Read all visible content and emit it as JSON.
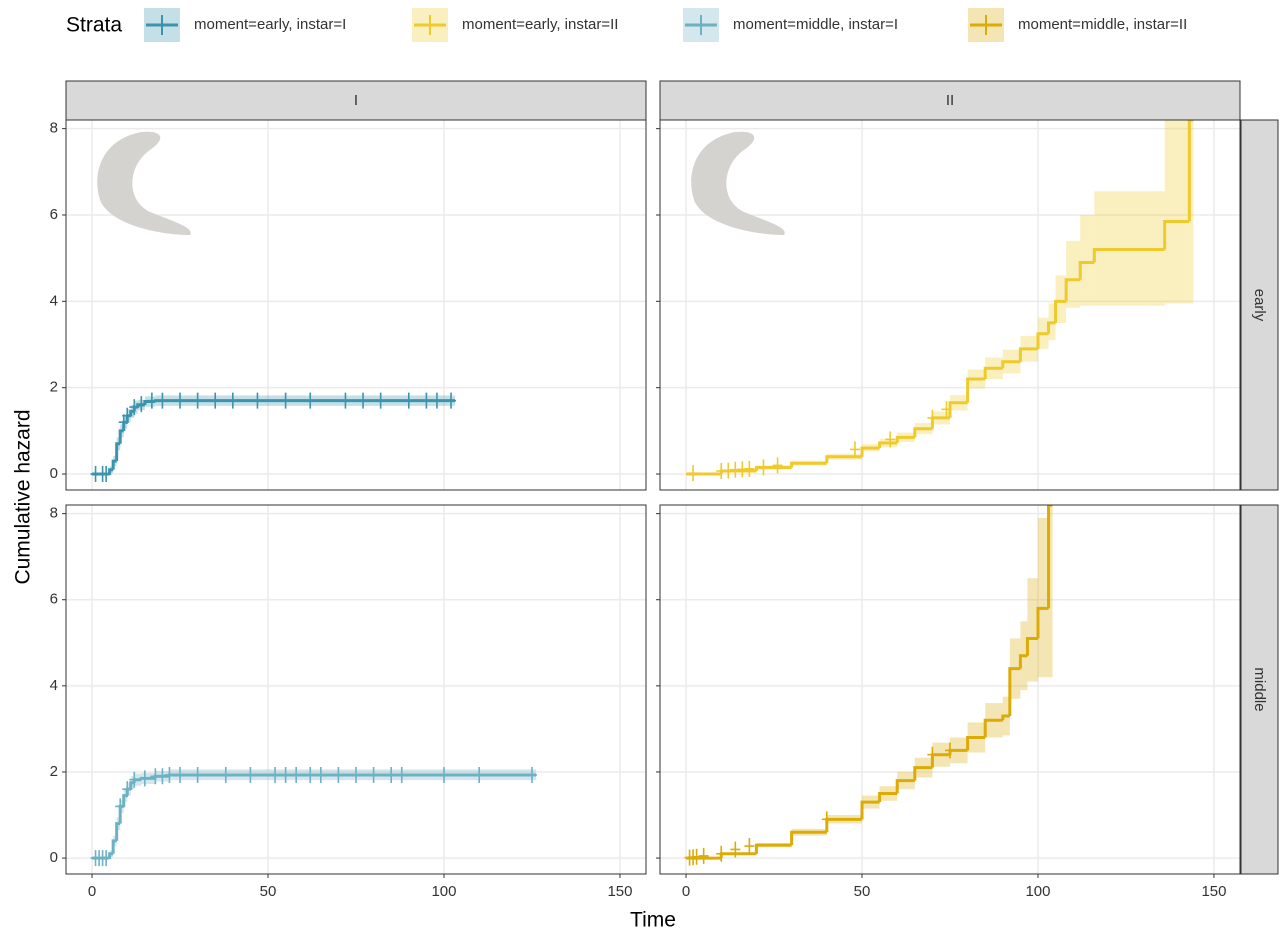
{
  "chart_data": {
    "type": "step",
    "legend_title": "Strata",
    "xlabel": "Time",
    "ylabel": "Cumulative hazard",
    "col_labels": [
      "I",
      "II"
    ],
    "row_labels": [
      "early",
      "middle"
    ],
    "xlim": [
      -7.4,
      157.4
    ],
    "xticks": [
      0,
      50,
      100,
      150
    ],
    "ylim": [
      -0.37,
      8.2
    ],
    "yticks": [
      0,
      2,
      4,
      6,
      8
    ],
    "grid": true,
    "series": [
      {
        "name": "moment=early, instar=I",
        "color": "#3a94ad",
        "x": [
          0,
          4,
          5,
          6,
          7,
          8,
          9,
          10,
          11,
          12,
          13,
          15,
          18,
          102
        ],
        "values": [
          0,
          0,
          0.1,
          0.3,
          0.7,
          1.0,
          1.2,
          1.35,
          1.45,
          1.55,
          1.6,
          1.68,
          1.7,
          1.7
        ],
        "lower": [
          0,
          0,
          0.02,
          0.18,
          0.55,
          0.85,
          1.05,
          1.2,
          1.3,
          1.4,
          1.48,
          1.56,
          1.58,
          1.58
        ],
        "upper": [
          0,
          0,
          0.18,
          0.42,
          0.85,
          1.15,
          1.35,
          1.5,
          1.6,
          1.7,
          1.72,
          1.8,
          1.82,
          1.82
        ],
        "censor_x": [
          1,
          3,
          4,
          9,
          10,
          12,
          14,
          17,
          20,
          25,
          30,
          35,
          40,
          47,
          55,
          62,
          72,
          77,
          82,
          90,
          95,
          98,
          102
        ],
        "censor_values": [
          0,
          0,
          0,
          1.2,
          1.35,
          1.55,
          1.62,
          1.7,
          1.7,
          1.7,
          1.7,
          1.7,
          1.7,
          1.7,
          1.7,
          1.7,
          1.7,
          1.7,
          1.7,
          1.7,
          1.7,
          1.7,
          1.7
        ]
      },
      {
        "name": "moment=early, instar=II",
        "color": "#efca2c",
        "x": [
          0,
          10,
          20,
          30,
          40,
          50,
          55,
          60,
          65,
          70,
          75,
          80,
          85,
          90,
          95,
          100,
          103,
          105,
          108,
          112,
          116,
          136,
          143
        ],
        "values": [
          0,
          0.07,
          0.15,
          0.25,
          0.4,
          0.6,
          0.72,
          0.85,
          1.05,
          1.3,
          1.65,
          2.2,
          2.45,
          2.6,
          2.9,
          3.25,
          3.5,
          4.0,
          4.5,
          4.9,
          5.2,
          5.85,
          8.2
        ],
        "lower": [
          0,
          0.04,
          0.1,
          0.2,
          0.33,
          0.52,
          0.62,
          0.74,
          0.92,
          1.15,
          1.47,
          1.98,
          2.2,
          2.33,
          2.6,
          2.9,
          3.1,
          3.5,
          3.85,
          3.9,
          3.9,
          3.95,
          3.95
        ],
        "upper": [
          0,
          0.1,
          0.2,
          0.31,
          0.47,
          0.69,
          0.82,
          0.96,
          1.18,
          1.45,
          1.83,
          2.42,
          2.7,
          2.88,
          3.2,
          3.62,
          3.95,
          4.6,
          5.4,
          6.0,
          6.55,
          8.2,
          8.2
        ],
        "censor_x": [
          2,
          10,
          12,
          14,
          16,
          18,
          22,
          26,
          48,
          58,
          70,
          74
        ],
        "censor_values": [
          0.02,
          0.07,
          0.08,
          0.1,
          0.11,
          0.12,
          0.15,
          0.2,
          0.57,
          0.8,
          1.3,
          1.5
        ]
      },
      {
        "name": "moment=middle, instar=I",
        "color": "#6db1c5",
        "x": [
          0,
          4,
          5,
          6,
          7,
          8,
          9,
          10,
          11,
          12,
          14,
          18,
          22,
          125
        ],
        "values": [
          0,
          0,
          0.1,
          0.4,
          0.8,
          1.2,
          1.45,
          1.6,
          1.75,
          1.82,
          1.85,
          1.9,
          1.93,
          1.93
        ],
        "lower": [
          0,
          0,
          0.02,
          0.28,
          0.65,
          1.05,
          1.3,
          1.45,
          1.6,
          1.68,
          1.72,
          1.78,
          1.81,
          1.81
        ],
        "upper": [
          0,
          0,
          0.18,
          0.52,
          0.95,
          1.35,
          1.6,
          1.75,
          1.9,
          1.96,
          1.98,
          2.02,
          2.06,
          2.06
        ],
        "censor_x": [
          1,
          2,
          3,
          4,
          8,
          10,
          12,
          15,
          18,
          20,
          22,
          25,
          30,
          38,
          45,
          52,
          55,
          58,
          62,
          65,
          70,
          75,
          80,
          85,
          88,
          100,
          110,
          125
        ],
        "censor_values": [
          0,
          0,
          0,
          0,
          1.2,
          1.6,
          1.82,
          1.85,
          1.9,
          1.9,
          1.93,
          1.93,
          1.93,
          1.93,
          1.93,
          1.93,
          1.93,
          1.93,
          1.93,
          1.93,
          1.93,
          1.93,
          1.93,
          1.93,
          1.93,
          1.93,
          1.93,
          1.93
        ]
      },
      {
        "name": "moment=middle, instar=II",
        "color": "#dcab05",
        "x": [
          0,
          10,
          20,
          30,
          40,
          50,
          55,
          60,
          65,
          70,
          75,
          80,
          85,
          90,
          92,
          95,
          97,
          100,
          103
        ],
        "values": [
          0,
          0.1,
          0.3,
          0.6,
          0.9,
          1.3,
          1.5,
          1.8,
          2.1,
          2.4,
          2.5,
          2.8,
          3.2,
          3.3,
          4.4,
          4.7,
          5.1,
          5.8,
          8.2
        ],
        "lower": [
          0,
          0.07,
          0.25,
          0.52,
          0.8,
          1.15,
          1.33,
          1.6,
          1.87,
          2.12,
          2.2,
          2.45,
          2.8,
          2.85,
          3.7,
          3.9,
          4.1,
          4.2,
          4.2
        ],
        "upper": [
          0,
          0.13,
          0.35,
          0.68,
          1.0,
          1.45,
          1.67,
          2.0,
          2.33,
          2.68,
          2.8,
          3.15,
          3.6,
          3.75,
          5.1,
          5.5,
          6.5,
          7.9,
          8.2
        ],
        "censor_x": [
          1,
          2,
          3,
          5,
          10,
          14,
          18,
          40,
          70,
          75
        ],
        "censor_values": [
          0.01,
          0.02,
          0.03,
          0.05,
          0.1,
          0.2,
          0.28,
          0.9,
          2.4,
          2.5
        ]
      }
    ]
  }
}
